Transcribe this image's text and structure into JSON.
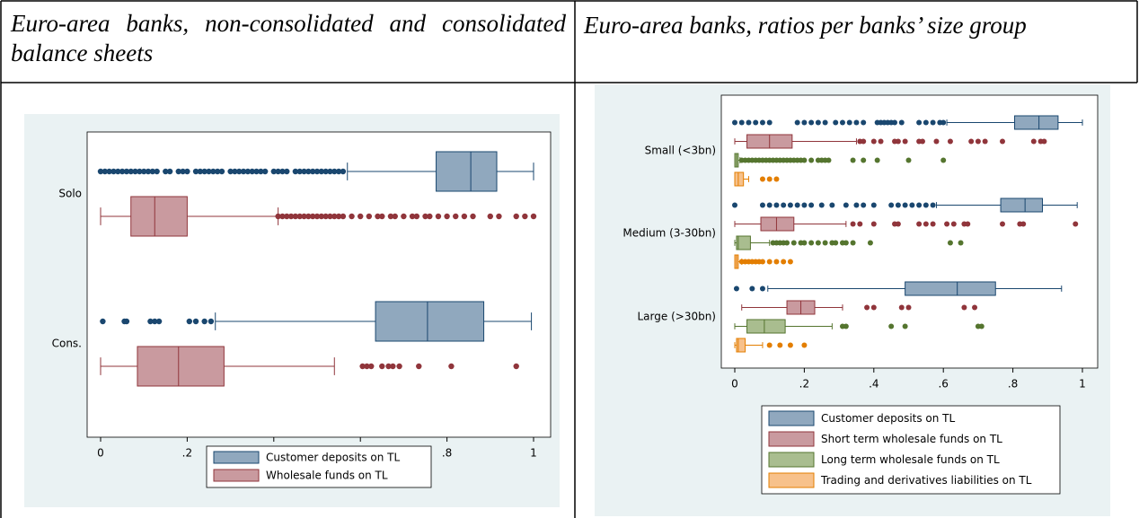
{
  "table": {
    "headers": [
      "Euro-area banks, non-consolidated and consolidated balance sheets",
      "Euro-area banks, ratios per banks’ size group"
    ]
  },
  "chart_data": [
    {
      "type": "boxplot",
      "categories": [
        "Solo",
        "Cons."
      ],
      "xlim": [
        0,
        1
      ],
      "xticks": [
        0,
        {
          "value": 0.2,
          "label": ".2"
        },
        {
          "value": 0.4,
          "label": ".4"
        },
        {
          "value": 0.6,
          "label": ".6"
        },
        {
          "value": 0.8,
          "label": ".8"
        },
        1
      ],
      "series": [
        {
          "name": "Customer deposits on TL",
          "color": "#90a8be",
          "edge": "#1a476f",
          "boxes": [
            {
              "whislo": 0.57,
              "q1": 0.775,
              "med": 0.855,
              "q3": 0.915,
              "whishi": 1.0,
              "fliers": [
                0,
                0.01,
                0.02,
                0.03,
                0.04,
                0.05,
                0.06,
                0.07,
                0.08,
                0.09,
                0.1,
                0.11,
                0.12,
                0.13,
                0.15,
                0.16,
                0.18,
                0.19,
                0.2,
                0.22,
                0.23,
                0.24,
                0.25,
                0.26,
                0.27,
                0.28,
                0.3,
                0.31,
                0.32,
                0.33,
                0.34,
                0.35,
                0.36,
                0.37,
                0.38,
                0.4,
                0.41,
                0.42,
                0.43,
                0.45,
                0.46,
                0.47,
                0.48,
                0.49,
                0.5,
                0.51,
                0.52,
                0.53,
                0.54,
                0.55,
                0.56
              ]
            },
            {
              "whislo": 0.265,
              "q1": 0.635,
              "med": 0.755,
              "q3": 0.885,
              "whishi": 0.995,
              "fliers": [
                0.005,
                0.055,
                0.06,
                0.115,
                0.125,
                0.135,
                0.205,
                0.22,
                0.24,
                0.255
              ]
            }
          ]
        },
        {
          "name": "Wholesale funds on TL",
          "color": "#c99a9f",
          "edge": "#90353b",
          "boxes": [
            {
              "whislo": 0,
              "q1": 0.07,
              "med": 0.125,
              "q3": 0.2,
              "whishi": 0.41,
              "fliers": [
                0.41,
                0.42,
                0.43,
                0.44,
                0.45,
                0.46,
                0.47,
                0.48,
                0.49,
                0.5,
                0.51,
                0.52,
                0.53,
                0.54,
                0.55,
                0.56,
                0.58,
                0.6,
                0.62,
                0.64,
                0.65,
                0.67,
                0.68,
                0.7,
                0.72,
                0.73,
                0.75,
                0.76,
                0.78,
                0.8,
                0.82,
                0.84,
                0.86,
                0.9,
                0.92,
                0.96,
                0.98,
                1.0
              ]
            },
            {
              "whislo": 0,
              "q1": 0.085,
              "med": 0.18,
              "q3": 0.285,
              "whishi": 0.54,
              "fliers": [
                0.605,
                0.615,
                0.625,
                0.65,
                0.665,
                0.675,
                0.69,
                0.735,
                0.81,
                0.96
              ]
            }
          ]
        }
      ]
    },
    {
      "type": "boxplot",
      "categories": [
        "Small (<3bn)",
        "Medium (3-30bn)",
        "Large (>30bn)"
      ],
      "xlim": [
        0,
        1
      ],
      "xticks": [
        0,
        {
          "value": 0.2,
          "label": ".2"
        },
        {
          "value": 0.4,
          "label": ".4"
        },
        {
          "value": 0.6,
          "label": ".6"
        },
        {
          "value": 0.8,
          "label": ".8"
        },
        1
      ],
      "series": [
        {
          "name": "Customer deposits on TL",
          "color": "#90a8be",
          "edge": "#1a476f",
          "boxes": [
            {
              "whislo": 0.61,
              "q1": 0.805,
              "med": 0.875,
              "q3": 0.93,
              "whishi": 1.0,
              "fliers": [
                0,
                0.02,
                0.04,
                0.06,
                0.08,
                0.1,
                0.18,
                0.2,
                0.22,
                0.24,
                0.26,
                0.29,
                0.31,
                0.33,
                0.35,
                0.37,
                0.41,
                0.42,
                0.43,
                0.44,
                0.45,
                0.46,
                0.48,
                0.53,
                0.55,
                0.57,
                0.59,
                0.6
              ]
            },
            {
              "whislo": 0.58,
              "q1": 0.765,
              "med": 0.835,
              "q3": 0.885,
              "whishi": 0.985,
              "fliers": [
                0,
                0.08,
                0.1,
                0.12,
                0.14,
                0.16,
                0.18,
                0.2,
                0.22,
                0.25,
                0.28,
                0.32,
                0.35,
                0.37,
                0.4,
                0.45,
                0.47,
                0.49,
                0.51,
                0.53,
                0.55,
                0.57
              ]
            },
            {
              "whislo": 0.095,
              "q1": 0.49,
              "med": 0.64,
              "q3": 0.75,
              "whishi": 0.94,
              "fliers": [
                0.005,
                0.05,
                0.08
              ]
            }
          ]
        },
        {
          "name": "Short term wholesale funds on TL",
          "color": "#c99a9f",
          "edge": "#90353b",
          "boxes": [
            {
              "whislo": 0,
              "q1": 0.035,
              "med": 0.1,
              "q3": 0.165,
              "whishi": 0.35,
              "fliers": [
                0.36,
                0.37,
                0.4,
                0.42,
                0.46,
                0.47,
                0.49,
                0.53,
                0.54,
                0.58,
                0.62,
                0.68,
                0.7,
                0.72,
                0.77,
                0.86,
                0.88,
                0.89
              ]
            },
            {
              "whislo": 0,
              "q1": 0.075,
              "med": 0.12,
              "q3": 0.17,
              "whishi": 0.32,
              "fliers": [
                0.34,
                0.36,
                0.4,
                0.46,
                0.47,
                0.53,
                0.55,
                0.57,
                0.61,
                0.63,
                0.66,
                0.67,
                0.77,
                0.82,
                0.83,
                0.98
              ]
            },
            {
              "whislo": 0.02,
              "q1": 0.15,
              "med": 0.19,
              "q3": 0.23,
              "whishi": 0.31,
              "fliers": [
                0.38,
                0.4,
                0.48,
                0.5,
                0.66,
                0.69
              ]
            }
          ]
        },
        {
          "name": "Long term wholesale funds on TL",
          "color": "#a9bd8f",
          "edge": "#55752f",
          "boxes": [
            {
              "whislo": 0,
              "q1": 0,
              "med": 0.005,
              "q3": 0.01,
              "whishi": 0.015,
              "fliers": [
                0.02,
                0.03,
                0.04,
                0.05,
                0.06,
                0.07,
                0.08,
                0.09,
                0.1,
                0.11,
                0.12,
                0.13,
                0.14,
                0.15,
                0.16,
                0.17,
                0.18,
                0.19,
                0.2,
                0.22,
                0.24,
                0.25,
                0.26,
                0.27,
                0.34,
                0.37,
                0.41,
                0.5,
                0.6
              ]
            },
            {
              "whislo": 0,
              "q1": 0.005,
              "med": 0.01,
              "q3": 0.045,
              "whishi": 0.1,
              "fliers": [
                0.11,
                0.12,
                0.13,
                0.14,
                0.15,
                0.17,
                0.19,
                0.2,
                0.22,
                0.24,
                0.26,
                0.28,
                0.29,
                0.31,
                0.32,
                0.34,
                0.39,
                0.62,
                0.65
              ]
            },
            {
              "whislo": 0,
              "q1": 0.035,
              "med": 0.085,
              "q3": 0.145,
              "whishi": 0.28,
              "fliers": [
                0.31,
                0.32,
                0.45,
                0.49,
                0.7,
                0.71
              ]
            }
          ]
        },
        {
          "name": "Trading and derivatives liabilities on TL",
          "color": "#f7c18b",
          "edge": "#e37e00",
          "boxes": [
            {
              "whislo": 0,
              "q1": 0,
              "med": 0.01,
              "q3": 0.025,
              "whishi": 0.04,
              "fliers": [
                0.08,
                0.1,
                0.12
              ]
            },
            {
              "whislo": 0,
              "q1": 0,
              "med": 0.005,
              "q3": 0.01,
              "whishi": 0.02,
              "fliers": [
                0.02,
                0.03,
                0.04,
                0.05,
                0.06,
                0.07,
                0.08,
                0.1,
                0.12,
                0.14,
                0.16
              ]
            },
            {
              "whislo": 0,
              "q1": 0.005,
              "med": 0.01,
              "q3": 0.03,
              "whishi": 0.08,
              "fliers": [
                0.1,
                0.13,
                0.16,
                0.2
              ]
            }
          ]
        }
      ]
    }
  ]
}
